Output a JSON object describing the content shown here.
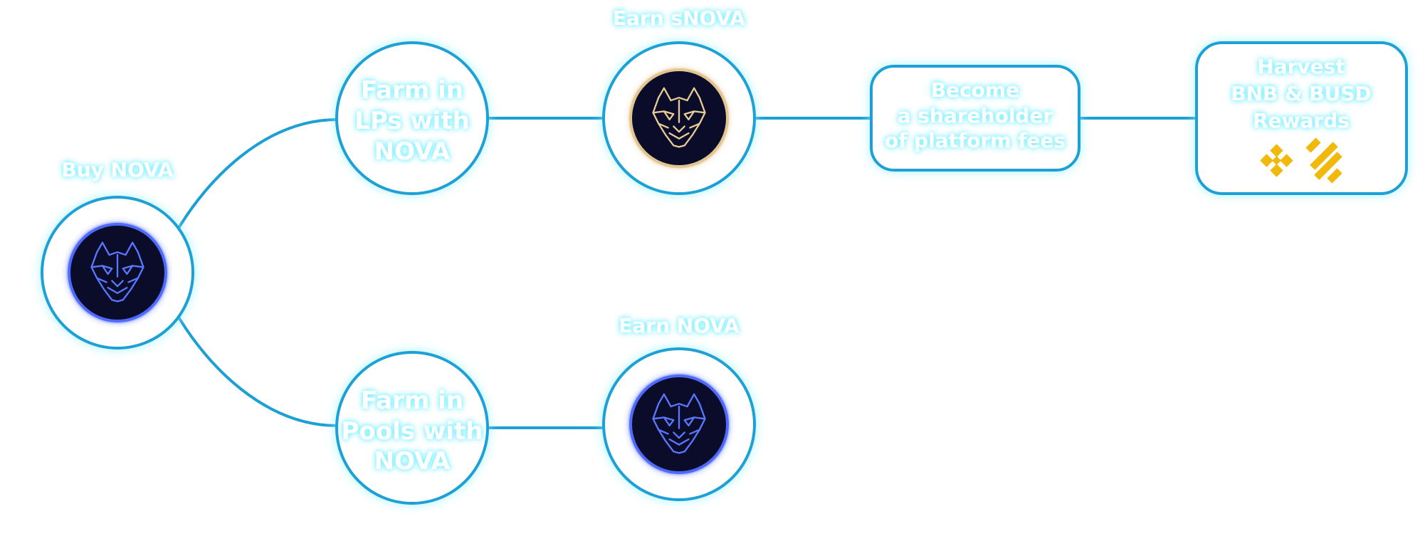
{
  "nodes": {
    "buy_nova": {
      "label": "Buy NOVA",
      "icon": "nova-wolf-icon"
    },
    "farm_lps": {
      "lines": [
        "Farm in",
        "LPs with",
        "NOVA"
      ]
    },
    "earn_snova": {
      "label": "Earn sNOVA",
      "icon": "snova-wolf-icon"
    },
    "shareholder": {
      "lines": [
        "Become",
        "a shareholder",
        "of platform fees"
      ]
    },
    "harvest": {
      "lines": [
        "Harvest",
        "BNB & BUSD",
        "Rewards"
      ],
      "icons": [
        "bnb-icon",
        "busd-icon"
      ]
    },
    "farm_pools": {
      "lines": [
        "Farm in",
        "Pools with",
        "NOVA"
      ]
    },
    "earn_nova": {
      "label": "Earn NOVA",
      "icon": "nova-wolf-icon"
    }
  },
  "colors": {
    "connector": "#1ba0d6",
    "glow": "#8ff3ff",
    "nova_coin": "#3f5bff",
    "snova_coin": "#e3c68f",
    "coin_bg": "#0b0c2a",
    "binance_gold": "#f0b90b"
  }
}
